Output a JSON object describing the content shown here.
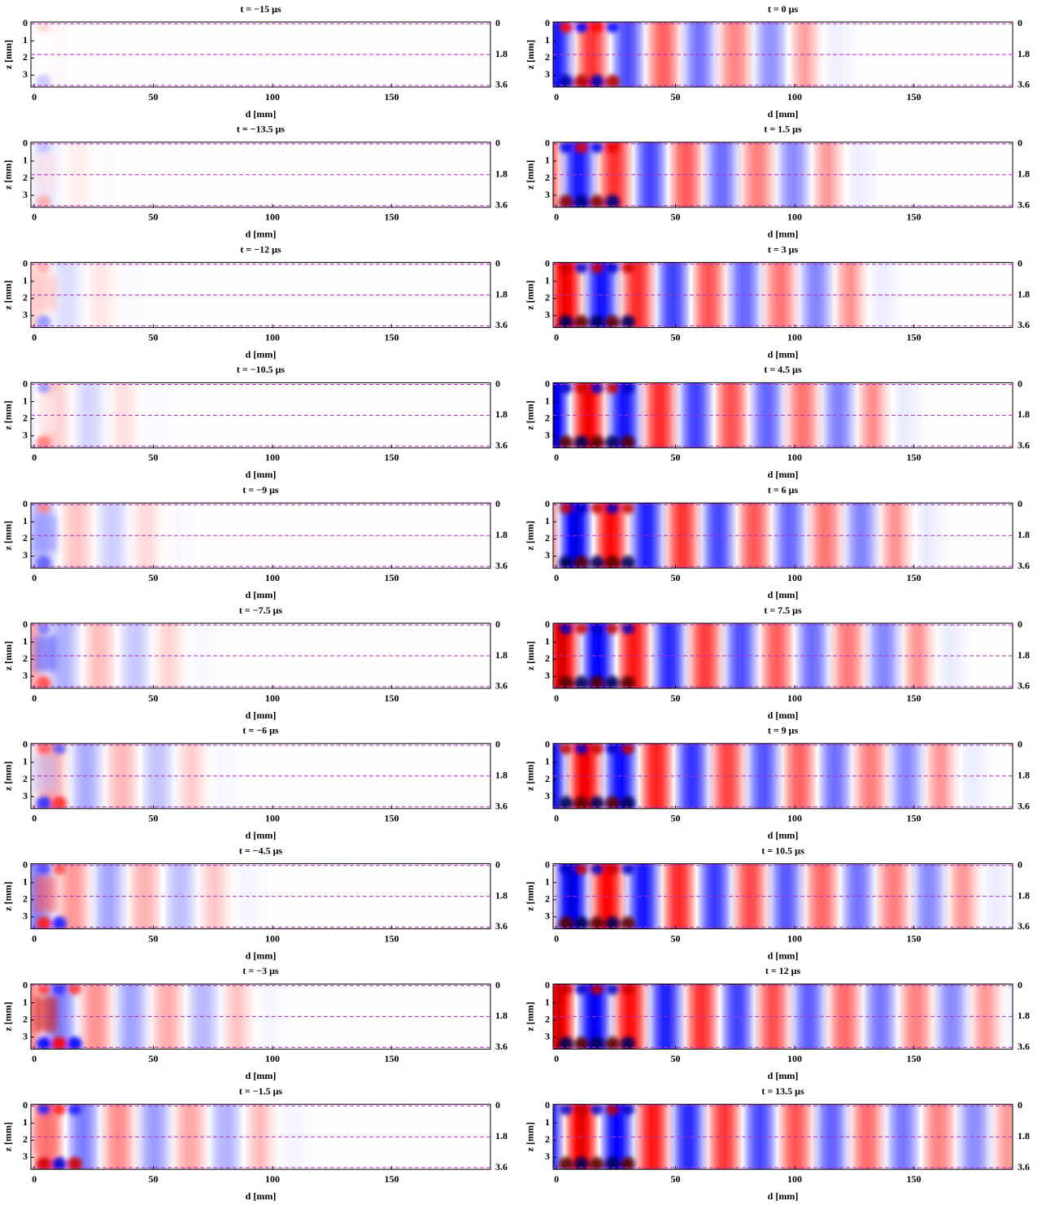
{
  "chart_data": [
    {
      "type": "heatmap",
      "title": "t = −15 μs",
      "xlabel": "d [mm]",
      "ylabel": "z [mm]",
      "xlim": [
        -1.4,
        191.5
      ],
      "xticks": [
        0,
        50,
        100,
        150
      ],
      "ylim": [
        3.7,
        -0.1
      ],
      "yticks": [
        0,
        1,
        2,
        3
      ],
      "y2lim": [
        3.7,
        -0.1
      ],
      "y2ticks": [
        0,
        1.8,
        3.6
      ],
      "y2_line_color": "#b030c0"
    },
    {
      "type": "heatmap",
      "title": "t = −13.5 μs",
      "xlabel": "d [mm]",
      "ylabel": "z [mm]",
      "xlim": [
        -1.4,
        191.5
      ],
      "xticks": [
        0,
        50,
        100,
        150
      ],
      "ylim": [
        3.7,
        -0.1
      ],
      "yticks": [
        0,
        1,
        2,
        3
      ],
      "y2lim": [
        3.7,
        -0.1
      ],
      "y2ticks": [
        0,
        1.8,
        3.6
      ],
      "y2_line_color": "#b030c0"
    },
    {
      "type": "heatmap",
      "title": "t = −12 μs",
      "xlabel": "d [mm]",
      "ylabel": "z [mm]",
      "xlim": [
        -1.4,
        191.5
      ],
      "xticks": [
        0,
        50,
        100,
        150
      ],
      "ylim": [
        3.7,
        -0.1
      ],
      "yticks": [
        0,
        1,
        2,
        3
      ],
      "y2lim": [
        3.7,
        -0.1
      ],
      "y2ticks": [
        0,
        1.8,
        3.6
      ],
      "y2_line_color": "#b030c0"
    },
    {
      "type": "heatmap",
      "title": "t = −10.5 μs",
      "xlabel": "d [mm]",
      "ylabel": "z [mm]",
      "xlim": [
        -1.4,
        191.5
      ],
      "xticks": [
        0,
        50,
        100,
        150
      ],
      "ylim": [
        3.7,
        -0.1
      ],
      "yticks": [
        0,
        1,
        2,
        3
      ],
      "y2lim": [
        3.7,
        -0.1
      ],
      "y2ticks": [
        0,
        1.8,
        3.6
      ],
      "y2_line_color": "#b030c0"
    },
    {
      "type": "heatmap",
      "title": "t = −9 μs",
      "xlabel": "d [mm]",
      "ylabel": "z [mm]",
      "xlim": [
        -1.4,
        191.5
      ],
      "xticks": [
        0,
        50,
        100,
        150
      ],
      "ylim": [
        3.7,
        -0.1
      ],
      "yticks": [
        0,
        1,
        2,
        3
      ],
      "y2lim": [
        3.7,
        -0.1
      ],
      "y2ticks": [
        0,
        1.8,
        3.6
      ],
      "y2_line_color": "#b030c0"
    },
    {
      "type": "heatmap",
      "title": "t = −7.5 μs",
      "xlabel": "d [mm]",
      "ylabel": "z [mm]",
      "xlim": [
        -1.4,
        191.5
      ],
      "xticks": [
        0,
        50,
        100,
        150
      ],
      "ylim": [
        3.7,
        -0.1
      ],
      "yticks": [
        0,
        1,
        2,
        3
      ],
      "y2lim": [
        3.7,
        -0.1
      ],
      "y2ticks": [
        0,
        1.8,
        3.6
      ],
      "y2_line_color": "#b030c0"
    },
    {
      "type": "heatmap",
      "title": "t = −6 μs",
      "xlabel": "d [mm]",
      "ylabel": "z [mm]",
      "xlim": [
        -1.4,
        191.5
      ],
      "xticks": [
        0,
        50,
        100,
        150
      ],
      "ylim": [
        3.7,
        -0.1
      ],
      "yticks": [
        0,
        1,
        2,
        3
      ],
      "y2lim": [
        3.7,
        -0.1
      ],
      "y2ticks": [
        0,
        1.8,
        3.6
      ],
      "y2_line_color": "#b030c0"
    },
    {
      "type": "heatmap",
      "title": "t = −4.5 μs",
      "xlabel": "d [mm]",
      "ylabel": "z [mm]",
      "xlim": [
        -1.4,
        191.5
      ],
      "xticks": [
        0,
        50,
        100,
        150
      ],
      "ylim": [
        3.7,
        -0.1
      ],
      "yticks": [
        0,
        1,
        2,
        3
      ],
      "y2lim": [
        3.7,
        -0.1
      ],
      "y2ticks": [
        0,
        1.8,
        3.6
      ],
      "y2_line_color": "#b030c0"
    },
    {
      "type": "heatmap",
      "title": "t = −3 μs",
      "xlabel": "d [mm]",
      "ylabel": "z [mm]",
      "xlim": [
        -1.4,
        191.5
      ],
      "xticks": [
        0,
        50,
        100,
        150
      ],
      "ylim": [
        3.7,
        -0.1
      ],
      "yticks": [
        0,
        1,
        2,
        3
      ],
      "y2lim": [
        3.7,
        -0.1
      ],
      "y2ticks": [
        0,
        1.8,
        3.6
      ],
      "y2_line_color": "#b030c0"
    },
    {
      "type": "heatmap",
      "title": "t = −1.5 μs",
      "xlabel": "d [mm]",
      "ylabel": "z [mm]",
      "xlim": [
        -1.4,
        191.5
      ],
      "xticks": [
        0,
        50,
        100,
        150
      ],
      "ylim": [
        3.7,
        -0.1
      ],
      "yticks": [
        0,
        1,
        2,
        3
      ],
      "y2lim": [
        3.7,
        -0.1
      ],
      "y2ticks": [
        0,
        1.8,
        3.6
      ],
      "y2_line_color": "#b030c0"
    },
    {
      "type": "heatmap",
      "title": "t = 0 μs",
      "xlabel": "d [mm]",
      "ylabel": "z [mm]",
      "xlim": [
        -1.4,
        191.5
      ],
      "xticks": [
        0,
        50,
        100,
        150
      ],
      "ylim": [
        3.7,
        -0.1
      ],
      "yticks": [
        0,
        1,
        2,
        3
      ],
      "y2lim": [
        3.7,
        -0.1
      ],
      "y2ticks": [
        0,
        1.8,
        3.6
      ],
      "y2_line_color": "#b030c0"
    },
    {
      "type": "heatmap",
      "title": "t = 1.5 μs",
      "xlabel": "d [mm]",
      "ylabel": "z [mm]",
      "xlim": [
        -1.4,
        191.5
      ],
      "xticks": [
        0,
        50,
        100,
        150
      ],
      "ylim": [
        3.7,
        -0.1
      ],
      "yticks": [
        0,
        1,
        2,
        3
      ],
      "y2lim": [
        3.7,
        -0.1
      ],
      "y2ticks": [
        0,
        1.8,
        3.6
      ],
      "y2_line_color": "#b030c0"
    },
    {
      "type": "heatmap",
      "title": "t = 3 μs",
      "xlabel": "d [mm]",
      "ylabel": "z [mm]",
      "xlim": [
        -1.4,
        191.5
      ],
      "xticks": [
        0,
        50,
        100,
        150
      ],
      "ylim": [
        3.7,
        -0.1
      ],
      "yticks": [
        0,
        1,
        2,
        3
      ],
      "y2lim": [
        3.7,
        -0.1
      ],
      "y2ticks": [
        0,
        1.8,
        3.6
      ],
      "y2_line_color": "#b030c0"
    },
    {
      "type": "heatmap",
      "title": "t = 4.5 μs",
      "xlabel": "d [mm]",
      "ylabel": "z [mm]",
      "xlim": [
        -1.4,
        191.5
      ],
      "xticks": [
        0,
        50,
        100,
        150
      ],
      "ylim": [
        3.7,
        -0.1
      ],
      "yticks": [
        0,
        1,
        2,
        3
      ],
      "y2lim": [
        3.7,
        -0.1
      ],
      "y2ticks": [
        0,
        1.8,
        3.6
      ],
      "y2_line_color": "#b030c0"
    },
    {
      "type": "heatmap",
      "title": "t = 6 μs",
      "xlabel": "d [mm]",
      "ylabel": "z [mm]",
      "xlim": [
        -1.4,
        191.5
      ],
      "xticks": [
        0,
        50,
        100,
        150
      ],
      "ylim": [
        3.7,
        -0.1
      ],
      "yticks": [
        0,
        1,
        2,
        3
      ],
      "y2lim": [
        3.7,
        -0.1
      ],
      "y2ticks": [
        0,
        1.8,
        3.6
      ],
      "y2_line_color": "#b030c0"
    },
    {
      "type": "heatmap",
      "title": "t = 7.5 μs",
      "xlabel": "d [mm]",
      "ylabel": "z [mm]",
      "xlim": [
        -1.4,
        191.5
      ],
      "xticks": [
        0,
        50,
        100,
        150
      ],
      "ylim": [
        3.7,
        -0.1
      ],
      "yticks": [
        0,
        1,
        2,
        3
      ],
      "y2lim": [
        3.7,
        -0.1
      ],
      "y2ticks": [
        0,
        1.8,
        3.6
      ],
      "y2_line_color": "#b030c0"
    },
    {
      "type": "heatmap",
      "title": "t = 9 μs",
      "xlabel": "d [mm]",
      "ylabel": "z [mm]",
      "xlim": [
        -1.4,
        191.5
      ],
      "xticks": [
        0,
        50,
        100,
        150
      ],
      "ylim": [
        3.7,
        -0.1
      ],
      "yticks": [
        0,
        1,
        2,
        3
      ],
      "y2lim": [
        3.7,
        -0.1
      ],
      "y2ticks": [
        0,
        1.8,
        3.6
      ],
      "y2_line_color": "#b030c0"
    },
    {
      "type": "heatmap",
      "title": "t = 10.5 μs",
      "xlabel": "d [mm]",
      "ylabel": "z [mm]",
      "xlim": [
        -1.4,
        191.5
      ],
      "xticks": [
        0,
        50,
        100,
        150
      ],
      "ylim": [
        3.7,
        -0.1
      ],
      "yticks": [
        0,
        1,
        2,
        3
      ],
      "y2lim": [
        3.7,
        -0.1
      ],
      "y2ticks": [
        0,
        1.8,
        3.6
      ],
      "y2_line_color": "#b030c0"
    },
    {
      "type": "heatmap",
      "title": "t = 12 μs",
      "xlabel": "d [mm]",
      "ylabel": "z [mm]",
      "xlim": [
        -1.4,
        191.5
      ],
      "xticks": [
        0,
        50,
        100,
        150
      ],
      "ylim": [
        3.7,
        -0.1
      ],
      "yticks": [
        0,
        1,
        2,
        3
      ],
      "y2lim": [
        3.7,
        -0.1
      ],
      "y2ticks": [
        0,
        1.8,
        3.6
      ],
      "y2_line_color": "#b030c0"
    },
    {
      "type": "heatmap",
      "title": "t = 13.5 μs",
      "xlabel": "d [mm]",
      "ylabel": "z [mm]",
      "xlim": [
        -1.4,
        191.5
      ],
      "xticks": [
        0,
        50,
        100,
        150
      ],
      "ylim": [
        3.7,
        -0.1
      ],
      "yticks": [
        0,
        1,
        2,
        3
      ],
      "y2lim": [
        3.7,
        -0.1
      ],
      "y2ticks": [
        0,
        1.8,
        3.6
      ],
      "y2_line_color": "#b030c0"
    }
  ]
}
